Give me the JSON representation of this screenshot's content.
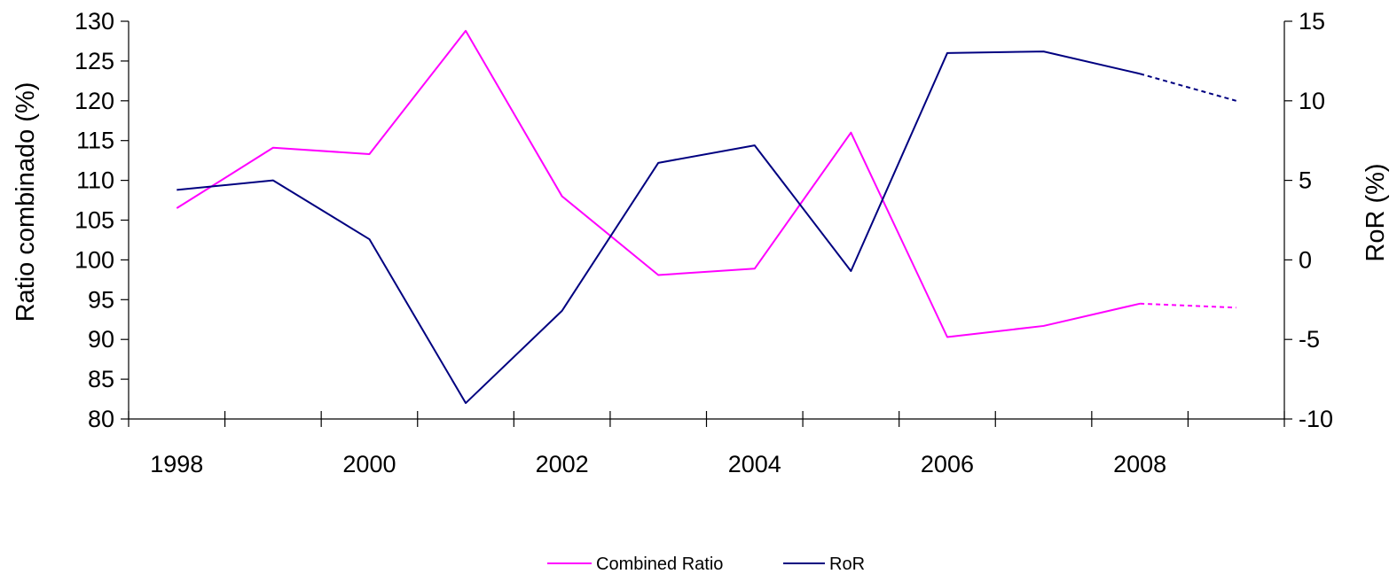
{
  "chart_data": {
    "type": "line",
    "x": [
      1998,
      1999,
      2000,
      2001,
      2002,
      2003,
      2004,
      2005,
      2006,
      2007,
      2008,
      2009
    ],
    "x_ticks": [
      "1998",
      "2000",
      "2002",
      "2004",
      "2006",
      "2008"
    ],
    "series": [
      {
        "name": "Combined Ratio",
        "axis": "left",
        "color": "#ff00ff",
        "values": [
          106.5,
          114.1,
          113.3,
          128.8,
          108.0,
          98.1,
          98.9,
          116.0,
          90.3,
          91.7,
          94.5,
          94.0
        ],
        "projected_from_index": 10
      },
      {
        "name": "RoR",
        "axis": "right",
        "color": "#000080",
        "values": [
          4.4,
          5.0,
          1.3,
          -9.0,
          -3.2,
          6.1,
          7.2,
          -0.7,
          13.0,
          13.1,
          11.7,
          10.0
        ],
        "projected_from_index": 10
      }
    ],
    "y_left": {
      "label": "Ratio combinado (%)",
      "min": 80,
      "max": 130,
      "step": 5,
      "ticks": [
        "130",
        "125",
        "120",
        "115",
        "110",
        "105",
        "100",
        "95",
        "90",
        "85",
        "80"
      ]
    },
    "y_right": {
      "label": "RoR (%)",
      "min": -10,
      "max": 15,
      "step": 5,
      "ticks": [
        "15",
        "10",
        "5",
        "0",
        "-5",
        "-10"
      ]
    },
    "legend": {
      "position": "bottom-center"
    },
    "grid": false
  }
}
